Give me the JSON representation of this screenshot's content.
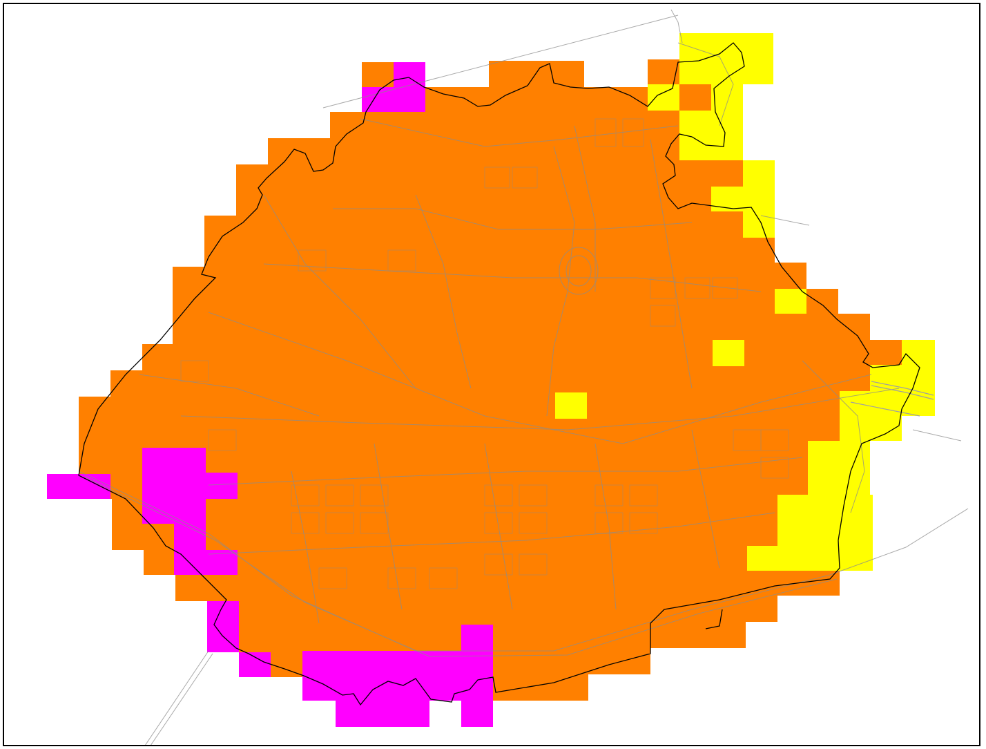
{
  "map": {
    "colors": {
      "background": "#ffffff",
      "frame": "#000000",
      "zone_orange": "#ff8000",
      "zone_yellow": "#ffff00",
      "zone_magenta": "#ff00ff",
      "roads": "#8c8c8c",
      "boundary": "#000000",
      "rail": "#a0a0a0"
    },
    "legend_visible": false,
    "labels_visible": false,
    "layers": [
      "grid-cells-orange",
      "grid-cells-yellow",
      "grid-cells-magenta",
      "road-network",
      "rail-lines",
      "city-boundary"
    ]
  }
}
